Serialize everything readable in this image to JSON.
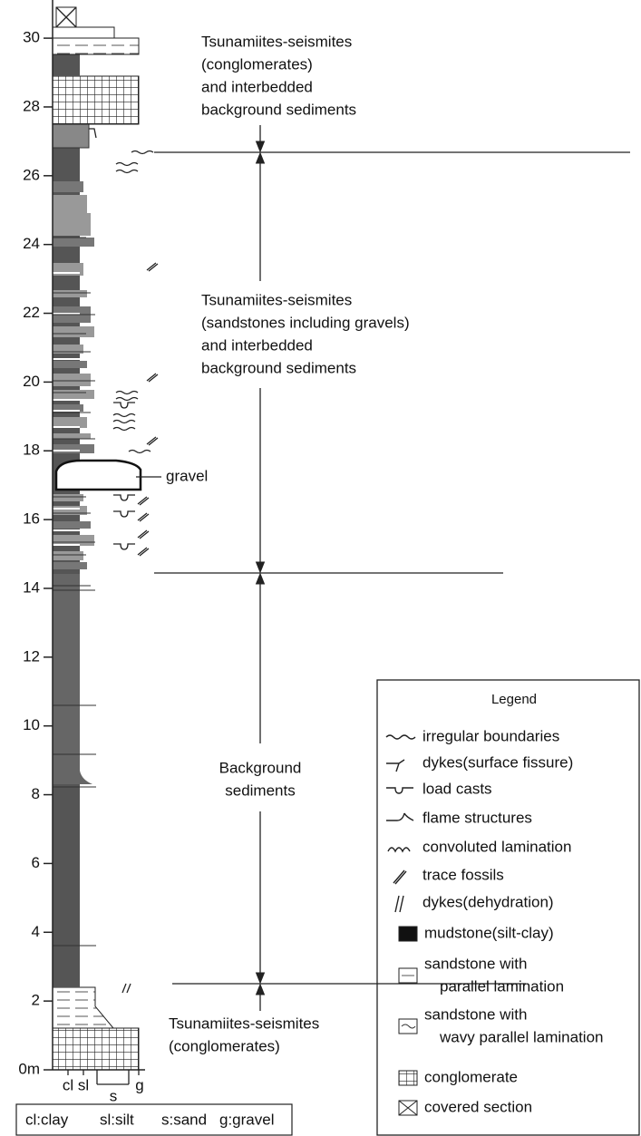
{
  "axis": {
    "ticks": [
      {
        "value": 0,
        "label": "0m"
      },
      2,
      4,
      6,
      8,
      10,
      12,
      14,
      16,
      18,
      20,
      22,
      24,
      26,
      28,
      30
    ]
  },
  "grain_size_labels": [
    "cl",
    "sl",
    "s",
    "g"
  ],
  "annotations": [
    {
      "lines": [
        "Tsunamiites-seismites",
        "(conglomerates)",
        "and interbedded",
        "background sediments"
      ]
    },
    {
      "lines": [
        "Tsunamiites-seismites",
        "(sandstones including gravels)",
        "and interbedded",
        "background sediments"
      ]
    },
    {
      "lines": [
        "Background",
        "sediments"
      ]
    },
    {
      "lines": [
        "Tsunamiites-seismites",
        "(conglomerates)"
      ]
    }
  ],
  "gravel_label": "gravel",
  "legend": {
    "title": "Legend",
    "items": [
      {
        "lines": [
          "irregular boundaries"
        ]
      },
      {
        "lines": [
          "dykes(surface fissure)"
        ]
      },
      {
        "lines": [
          "load casts"
        ]
      },
      {
        "lines": [
          "flame structures"
        ]
      },
      {
        "lines": [
          "convoluted lamination"
        ]
      },
      {
        "lines": [
          "trace fossils"
        ]
      },
      {
        "lines": [
          "dykes(dehydration)"
        ]
      },
      {
        "lines": [
          "mudstone(silt-clay)"
        ]
      },
      {
        "lines": [
          "sandstone with",
          "parallel lamination"
        ]
      },
      {
        "lines": [
          "sandstone with",
          "wavy parallel lamination"
        ]
      },
      {
        "lines": [
          "conglomerate"
        ]
      },
      {
        "lines": [
          "covered section"
        ]
      }
    ]
  },
  "grain_key": [
    "cl:clay",
    "sl:silt",
    "s:sand",
    "g:gravel"
  ]
}
